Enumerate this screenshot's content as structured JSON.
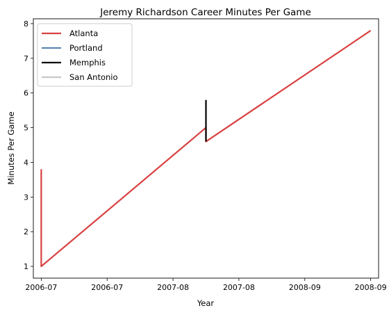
{
  "chart_data": {
    "type": "line",
    "title": "Jeremy Richardson Career Minutes Per Game",
    "xlabel": "Year",
    "ylabel": "Minutes Per Game",
    "x_ticks": [
      "2006-07",
      "2006-07",
      "2007-08",
      "2007-08",
      "2008-09",
      "2008-09"
    ],
    "x_tick_values": [
      0,
      1,
      2,
      3,
      4,
      5
    ],
    "xlim": [
      -0.12,
      5.12
    ],
    "y_ticks": [
      1,
      2,
      3,
      4,
      5,
      6,
      7,
      8
    ],
    "ylim": [
      0.66,
      8.14
    ],
    "legend_position": "upper-left",
    "grid": false,
    "series": [
      {
        "name": "Atlanta",
        "color": "#d94040",
        "points": [
          [
            0,
            3.8
          ],
          [
            0,
            1.0
          ],
          [
            2.5,
            5.0
          ],
          [
            2.5,
            4.6
          ],
          [
            5,
            7.8
          ]
        ]
      },
      {
        "name": "Portland",
        "color": "#5b87b8",
        "points": []
      },
      {
        "name": "Memphis",
        "color": "#000000",
        "points": [
          [
            2.5,
            5.8
          ],
          [
            2.5,
            4.6
          ]
        ]
      },
      {
        "name": "San Antonio",
        "color": "#c8c8c8",
        "points": []
      }
    ]
  }
}
